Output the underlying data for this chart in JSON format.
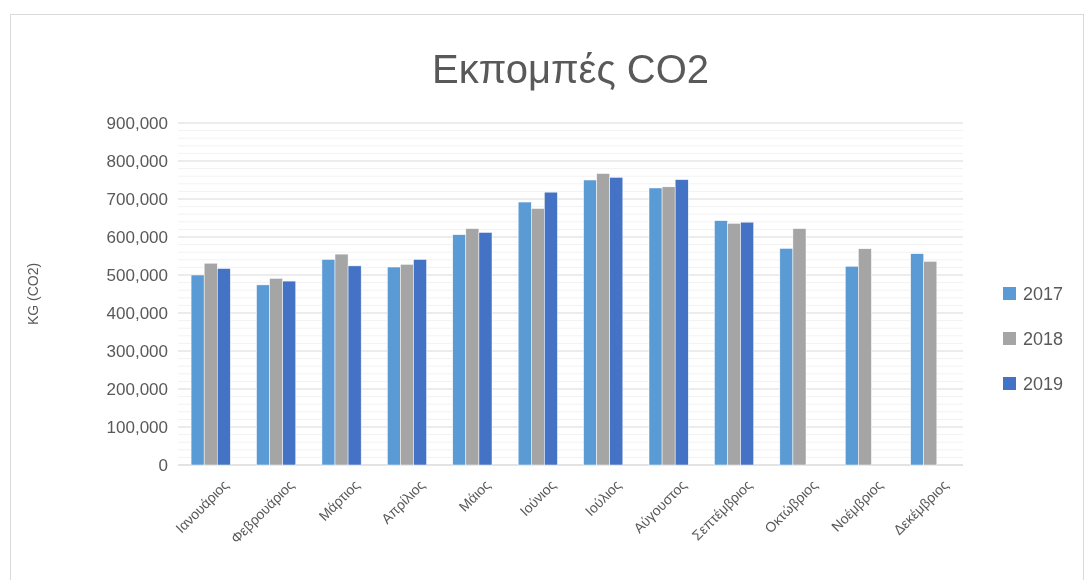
{
  "chart_data": {
    "type": "bar",
    "title": "Εκπομπές CO2",
    "ylabel": "KG (CO2)",
    "categories": [
      "Ιανουάριος",
      "Φεβρουάριος",
      "Μάρτιος",
      "Απρίλιος",
      "Μάιος",
      "Ιούνιος",
      "Ιούλιος",
      "Αύγουστος",
      "Σεπτέμβριος",
      "Οκτώβριος",
      "Νοέμβριος",
      "Δεκέμβριος"
    ],
    "series": [
      {
        "name": "2017",
        "color": "#5b9bd5",
        "values": [
          500000,
          474000,
          541000,
          521000,
          606000,
          692000,
          750000,
          729000,
          643000,
          570000,
          523000,
          556000
        ]
      },
      {
        "name": "2018",
        "color": "#a5a5a5",
        "values": [
          531000,
          491000,
          555000,
          528000,
          622000,
          675000,
          767000,
          732000,
          636000,
          622000,
          569000,
          536000
        ]
      },
      {
        "name": "2019",
        "color": "#4472c4",
        "values": [
          517000,
          484000,
          524000,
          541000,
          612000,
          718000,
          757000,
          751000,
          639000,
          null,
          null,
          null
        ]
      }
    ],
    "ylim": [
      0,
      900000
    ],
    "yticks": [
      "0",
      {
        "value": 20000,
        "label": null
      },
      {
        "value": 40000,
        "label": null
      },
      {
        "value": 60000,
        "label": null
      },
      {
        "value": 80000,
        "label": null
      },
      {
        "value": 100000,
        "label": "100,000"
      },
      {
        "value": 120000,
        "label": null
      },
      {
        "value": 140000,
        "label": null
      },
      {
        "value": 160000,
        "label": null
      },
      {
        "value": 180000,
        "label": null
      },
      {
        "value": 200000,
        "label": "200,000"
      },
      {
        "value": 220000,
        "label": null
      },
      {
        "value": 240000,
        "label": null
      },
      {
        "value": 260000,
        "label": null
      },
      {
        "value": 280000,
        "label": null
      },
      {
        "value": 300000,
        "label": "300,000"
      },
      {
        "value": 320000,
        "label": null
      },
      {
        "value": 340000,
        "label": null
      },
      {
        "value": 360000,
        "label": null
      },
      {
        "value": 380000,
        "label": null
      },
      {
        "value": 400000,
        "label": "400,000"
      },
      {
        "value": 420000,
        "label": null
      },
      {
        "value": 440000,
        "label": null
      },
      {
        "value": 460000,
        "label": null
      },
      {
        "value": 480000,
        "label": null
      },
      {
        "value": 500000,
        "label": "500,000"
      },
      {
        "value": 520000,
        "label": null
      },
      {
        "value": 540000,
        "label": null
      },
      {
        "value": 560000,
        "label": null
      },
      {
        "value": 580000,
        "label": null
      },
      {
        "value": 600000,
        "label": "600,000"
      },
      {
        "value": 620000,
        "label": null
      },
      {
        "value": 640000,
        "label": null
      },
      {
        "value": 660000,
        "label": null
      },
      {
        "value": 680000,
        "label": null
      },
      {
        "value": 700000,
        "label": "700,000"
      },
      {
        "value": 720000,
        "label": null
      },
      {
        "value": 740000,
        "label": null
      },
      {
        "value": 760000,
        "label": null
      },
      {
        "value": 780000,
        "label": null
      },
      {
        "value": 800000,
        "label": "800,000"
      },
      {
        "value": 820000,
        "label": null
      },
      {
        "value": 840000,
        "label": null
      },
      {
        "value": 860000,
        "label": null
      },
      {
        "value": 880000,
        "label": null
      },
      {
        "value": 900000,
        "label": "900,000"
      }
    ],
    "grid": "y",
    "legend": "right"
  }
}
